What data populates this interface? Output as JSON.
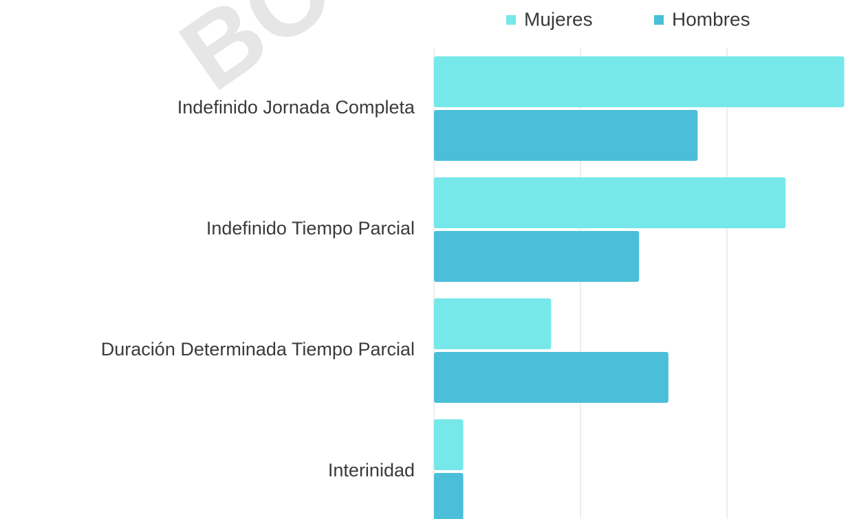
{
  "watermark": "BO",
  "chart_data": {
    "type": "hbar",
    "categories": [
      "Indefinido Jornada Completa",
      "Indefinido Tiempo Parcial",
      "Duración Determinada Tiempo Parcial",
      "Interinidad"
    ],
    "series": [
      {
        "name": "Mujeres",
        "color": "#76e8ea",
        "values": [
          28,
          24,
          8,
          2
        ]
      },
      {
        "name": "Hombres",
        "color": "#4bbfd9",
        "values": [
          18,
          14,
          16,
          2
        ]
      }
    ],
    "xlim": [
      0,
      28.26
    ],
    "xticks": [
      0,
      10,
      20
    ],
    "grid": true,
    "legend": "top"
  }
}
